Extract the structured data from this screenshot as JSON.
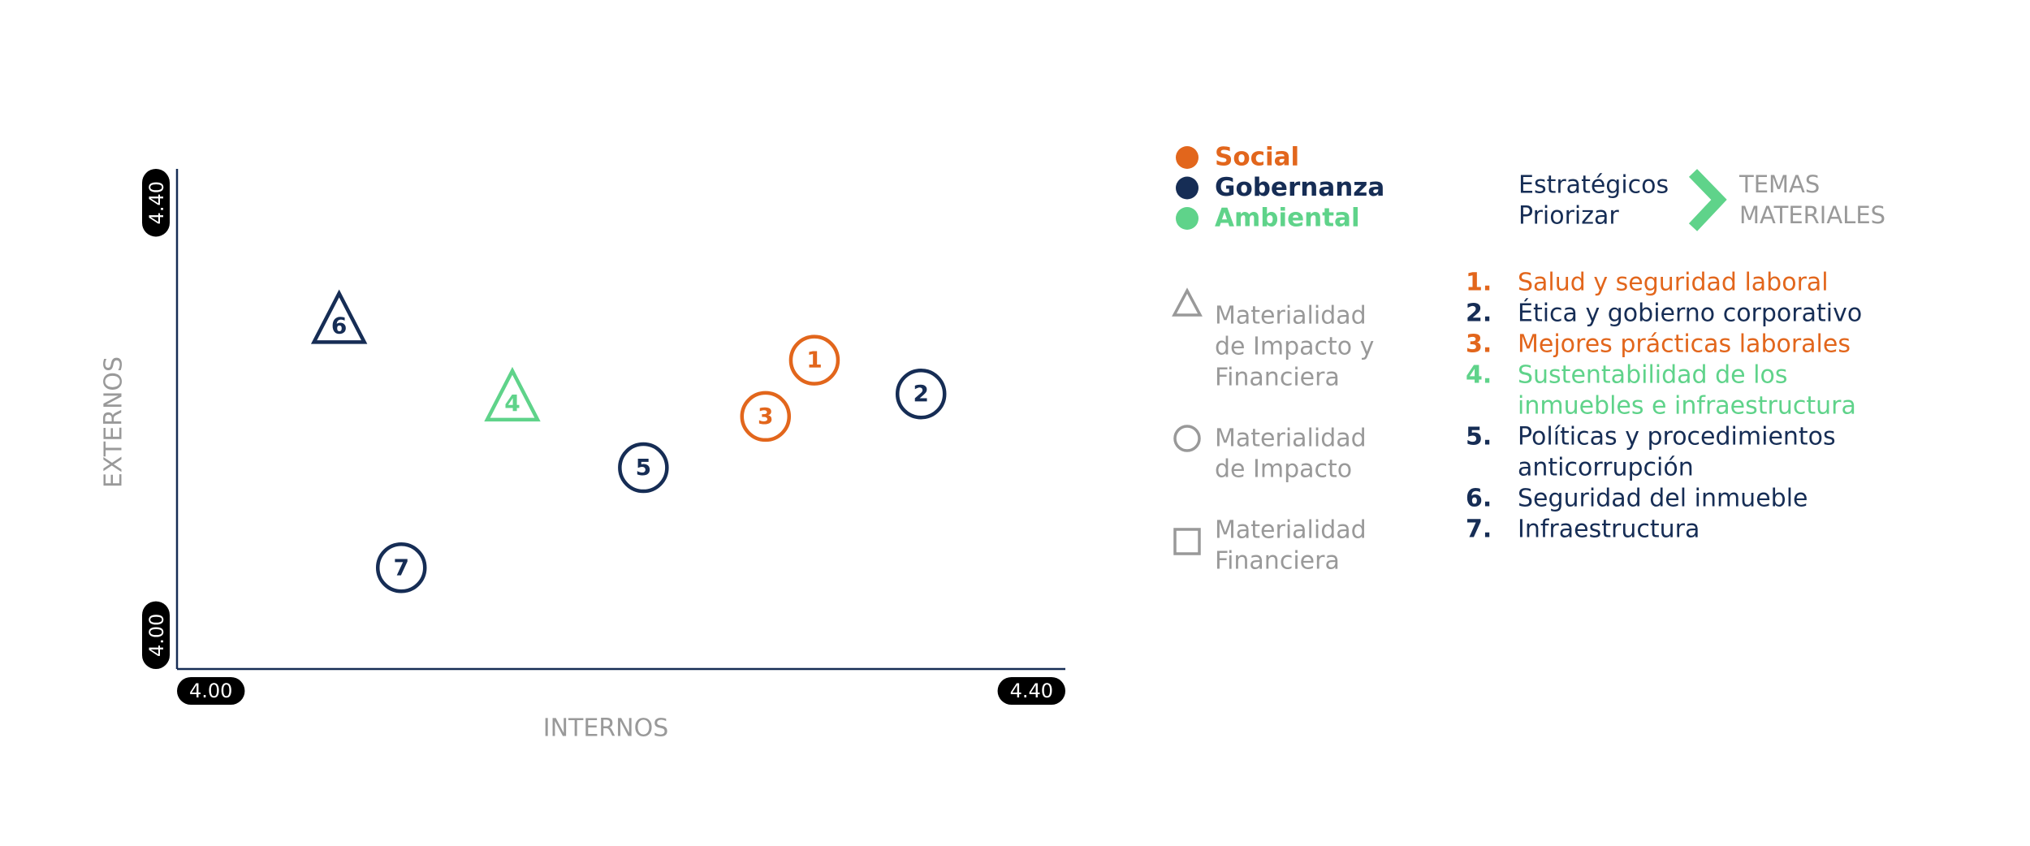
{
  "chart_data": {
    "type": "scatter",
    "xlabel": "INTERNOS",
    "ylabel": "EXTERNOS",
    "xlim": [
      4,
      4.4
    ],
    "ylim": [
      4,
      4.4
    ],
    "xticks": [
      {
        "value": 4,
        "label": "4.00"
      },
      {
        "value": 4.4,
        "label": "4.40"
      }
    ],
    "yticks": [
      {
        "value": 4,
        "label": "4.00"
      },
      {
        "value": 4.4,
        "label": "4.40"
      }
    ],
    "series": [
      {
        "name": "Social",
        "color": "#e2661c",
        "x": [
          4.287,
          4.265
        ],
        "values": [
          4.247,
          4.202
        ],
        "point_labels": [
          "1",
          "3"
        ],
        "shapes": [
          "circle",
          "circle"
        ]
      },
      {
        "name": "Gobernanza",
        "color": "#162d55",
        "x": [
          4.335,
          4.21,
          4.073,
          4.101
        ],
        "values": [
          4.22,
          4.161,
          4.279,
          4.081
        ],
        "point_labels": [
          "2",
          "5",
          "6",
          "7"
        ],
        "shapes": [
          "circle",
          "circle",
          "triangle",
          "circle"
        ]
      },
      {
        "name": "Ambiental",
        "color": "#5fd38a",
        "x": [
          4.151
        ],
        "values": [
          4.217
        ],
        "point_labels": [
          "4"
        ],
        "shapes": [
          "triangle"
        ]
      }
    ],
    "shape_legend": [
      {
        "shape": "triangle",
        "lines": [
          "Materialidad",
          "de Impacto y",
          "Financiera"
        ]
      },
      {
        "shape": "circle",
        "lines": [
          "Materialidad",
          "de Impacto"
        ]
      },
      {
        "shape": "square",
        "lines": [
          "Materialidad",
          "Financiera"
        ]
      }
    ],
    "priority": {
      "lines": [
        "Estratégicos",
        "Priorizar"
      ],
      "target": [
        "TEMAS",
        "MATERIALES"
      ]
    },
    "topics": [
      {
        "number": "1.",
        "lines": [
          "Salud y seguridad laboral"
        ],
        "color": "#e2661c"
      },
      {
        "number": "2.",
        "lines": [
          "Ética y gobierno corporativo"
        ],
        "color": "#162d55"
      },
      {
        "number": "3.",
        "lines": [
          "Mejores prácticas laborales"
        ],
        "color": "#e2661c"
      },
      {
        "number": "4.",
        "lines": [
          "Sustentabilidad de los",
          "inmuebles e infraestructura"
        ],
        "color": "#5fd38a"
      },
      {
        "number": "5.",
        "lines": [
          "Políticas y procedimientos",
          "anticorrupción"
        ],
        "color": "#162d55"
      },
      {
        "number": "6.",
        "lines": [
          "Seguridad del inmueble"
        ],
        "color": "#162d55"
      },
      {
        "number": "7.",
        "lines": [
          "Infraestructura"
        ],
        "color": "#162d55"
      }
    ]
  }
}
